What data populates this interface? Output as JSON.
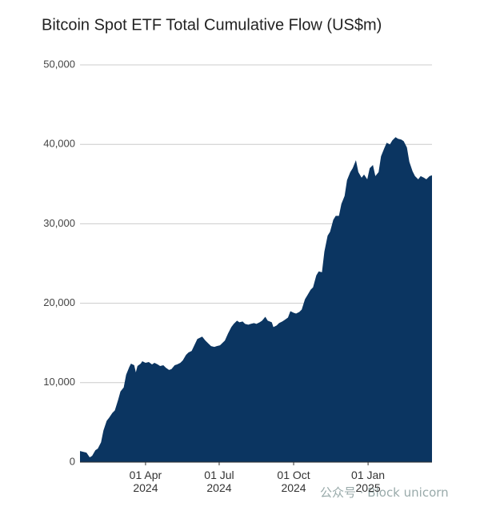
{
  "chart_data": {
    "type": "area",
    "title": "Bitcoin Spot ETF Total Cumulative Flow (US$m)",
    "color": "#0b3561",
    "grid": true,
    "x": [
      "2024-01-11",
      "2024-01-15",
      "2024-01-19",
      "2024-01-23",
      "2024-01-26",
      "2024-01-30",
      "2024-02-02",
      "2024-02-06",
      "2024-02-09",
      "2024-02-13",
      "2024-02-16",
      "2024-02-20",
      "2024-02-23",
      "2024-02-27",
      "2024-03-01",
      "2024-03-05",
      "2024-03-08",
      "2024-03-12",
      "2024-03-14",
      "2024-03-18",
      "2024-03-20",
      "2024-03-22",
      "2024-03-26",
      "2024-03-28",
      "2024-04-01",
      "2024-04-05",
      "2024-04-09",
      "2024-04-12",
      "2024-04-16",
      "2024-04-19",
      "2024-04-23",
      "2024-04-26",
      "2024-04-30",
      "2024-05-03",
      "2024-05-07",
      "2024-05-10",
      "2024-05-14",
      "2024-05-17",
      "2024-05-21",
      "2024-05-24",
      "2024-05-28",
      "2024-06-04",
      "2024-06-10",
      "2024-06-14",
      "2024-06-18",
      "2024-06-21",
      "2024-06-25",
      "2024-06-28",
      "2024-07-02",
      "2024-07-08",
      "2024-07-12",
      "2024-07-16",
      "2024-07-19",
      "2024-07-23",
      "2024-07-26",
      "2024-07-30",
      "2024-08-02",
      "2024-08-06",
      "2024-08-09",
      "2024-08-13",
      "2024-08-16",
      "2024-08-20",
      "2024-08-23",
      "2024-08-27",
      "2024-08-30",
      "2024-09-04",
      "2024-09-06",
      "2024-09-10",
      "2024-09-13",
      "2024-09-17",
      "2024-09-20",
      "2024-09-24",
      "2024-09-27",
      "2024-10-01",
      "2024-10-04",
      "2024-10-08",
      "2024-10-11",
      "2024-10-15",
      "2024-10-18",
      "2024-10-22",
      "2024-10-25",
      "2024-10-29",
      "2024-11-01",
      "2024-11-05",
      "2024-11-08",
      "2024-11-12",
      "2024-11-15",
      "2024-11-19",
      "2024-11-22",
      "2024-11-26",
      "2024-11-29",
      "2024-12-03",
      "2024-12-06",
      "2024-12-10",
      "2024-12-13",
      "2024-12-17",
      "2024-12-20",
      "2024-12-24",
      "2024-12-27",
      "2024-12-31",
      "2025-01-03",
      "2025-01-07",
      "2025-01-10",
      "2025-01-14",
      "2025-01-17",
      "2025-01-21",
      "2025-01-24",
      "2025-01-28",
      "2025-01-31",
      "2025-02-04",
      "2025-02-07",
      "2025-02-11",
      "2025-02-14",
      "2025-02-18",
      "2025-02-21",
      "2025-02-25",
      "2025-02-28",
      "2025-03-04",
      "2025-03-07",
      "2025-03-11",
      "2025-03-14",
      "2025-03-18",
      "2025-03-21"
    ],
    "values": [
      1400,
      1300,
      1200,
      600,
      800,
      1500,
      1700,
      2500,
      4000,
      5200,
      5600,
      6200,
      6500,
      7800,
      8900,
      9400,
      11000,
      12000,
      12400,
      12200,
      11300,
      12100,
      12400,
      12700,
      12500,
      12600,
      12300,
      12500,
      12300,
      12100,
      12200,
      11900,
      11600,
      11700,
      12200,
      12300,
      12500,
      12800,
      13500,
      13800,
      14000,
      15500,
      15800,
      15300,
      14900,
      14600,
      14500,
      14600,
      14700,
      15300,
      16200,
      17000,
      17400,
      17800,
      17600,
      17700,
      17400,
      17300,
      17400,
      17500,
      17400,
      17600,
      17800,
      18300,
      17800,
      17600,
      17000,
      17200,
      17500,
      17700,
      17900,
      18200,
      19000,
      18800,
      18700,
      18900,
      19200,
      20500,
      21000,
      21700,
      22000,
      23500,
      24000,
      23900,
      26500,
      28500,
      29000,
      30500,
      31000,
      31000,
      32500,
      33500,
      35500,
      36500,
      37000,
      38000,
      36500,
      35800,
      36200,
      35600,
      37000,
      37400,
      36000,
      36500,
      38500,
      39500,
      40200,
      40000,
      40500,
      40900,
      40700,
      40600,
      40400,
      39600,
      37800,
      36600,
      36000,
      35600,
      36000,
      35800,
      35600,
      36000,
      36100
    ],
    "xlim": [
      "2024-01-11",
      "2025-03-21"
    ],
    "xticks": [
      {
        "value": "2024-04-01",
        "label": "01 Apr 2024"
      },
      {
        "value": "2024-07-01",
        "label": "01 Jul 2024"
      },
      {
        "value": "2024-10-01",
        "label": "01 Oct 2024"
      },
      {
        "value": "2025-01-01",
        "label": "01 Jan 2025"
      }
    ],
    "ylim": [
      0,
      50000
    ],
    "yticks": [
      0,
      {
        "value": 10000,
        "label": "10,000"
      },
      {
        "value": 20000,
        "label": "20,000"
      },
      {
        "value": 30000,
        "label": "30,000"
      },
      {
        "value": 40000,
        "label": "40,000"
      },
      {
        "value": 50000,
        "label": "50,000"
      }
    ]
  },
  "watermark": "公众号 · Block unicorn"
}
